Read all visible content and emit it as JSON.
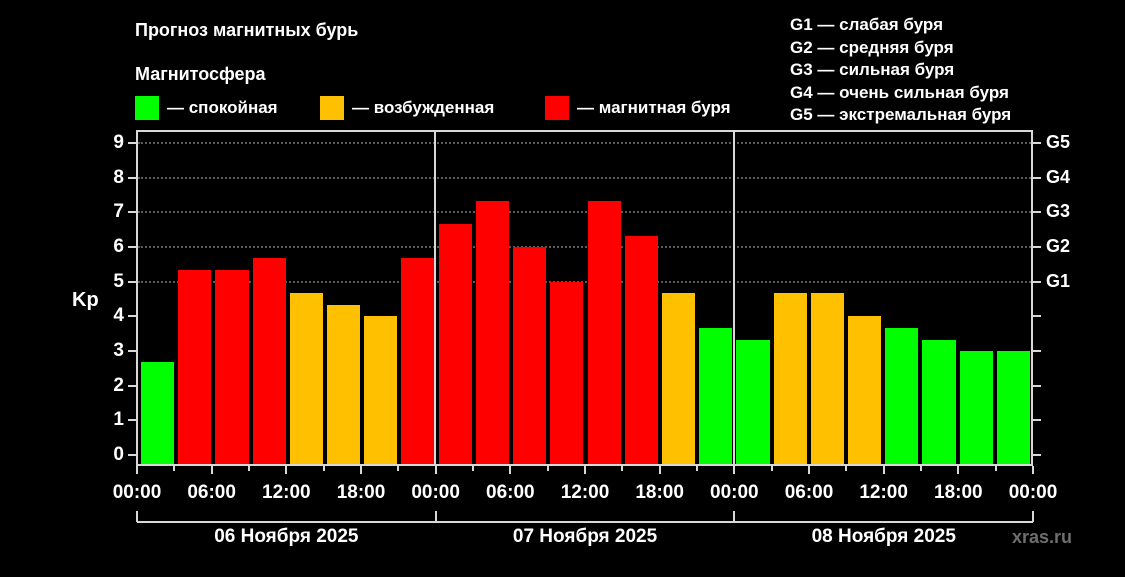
{
  "header": {
    "title": "Прогноз магнитных бурь",
    "subtitle": "Магнитосфера"
  },
  "legend": [
    {
      "label": "— спокойная",
      "color": "#00ff00"
    },
    {
      "label": "— возбужденная",
      "color": "#ffc000"
    },
    {
      "label": "— магнитная буря",
      "color": "#ff0000"
    }
  ],
  "g_legend": [
    "G1 — слабая буря",
    "G2 — средняя буря",
    "G3 — сильная буря",
    "G4 — очень сильная буря",
    "G5 — экстремальная буря"
  ],
  "watermark": "xras.ru",
  "chart_data": {
    "type": "bar",
    "title": "Прогноз магнитных бурь",
    "ylabel": "Kp",
    "xlabel": "",
    "ylim": [
      0,
      9
    ],
    "yticks": [
      "0",
      "1",
      "2",
      "3",
      "4",
      "5",
      "6",
      "7",
      "8",
      "9"
    ],
    "right_axis_labels": [
      {
        "kp": 5,
        "label": "G1"
      },
      {
        "kp": 6,
        "label": "G2"
      },
      {
        "kp": 7,
        "label": "G3"
      },
      {
        "kp": 8,
        "label": "G4"
      },
      {
        "kp": 9,
        "label": "G5"
      }
    ],
    "grid": true,
    "legend_position": "top",
    "xtick_labels": [
      "00:00",
      "06:00",
      "12:00",
      "18:00",
      "00:00",
      "06:00",
      "12:00",
      "18:00",
      "00:00",
      "06:00",
      "12:00",
      "18:00",
      "00:00"
    ],
    "days": [
      "06 Ноября 2025",
      "07 Ноября 2025",
      "08 Ноября 2025"
    ],
    "categories": [
      "06.11 00-03",
      "06.11 03-06",
      "06.11 06-09",
      "06.11 09-12",
      "06.11 12-15",
      "06.11 15-18",
      "06.11 18-21",
      "06.11 21-24",
      "07.11 00-03",
      "07.11 03-06",
      "07.11 06-09",
      "07.11 09-12",
      "07.11 12-15",
      "07.11 15-18",
      "07.11 18-21",
      "07.11 21-24",
      "08.11 00-03",
      "08.11 03-06",
      "08.11 06-09",
      "08.11 09-12",
      "08.11 12-15",
      "08.11 15-18",
      "08.11 18-21",
      "08.11 21-24"
    ],
    "values": [
      2.67,
      5.33,
      5.33,
      5.67,
      4.67,
      4.33,
      4.0,
      5.67,
      6.67,
      7.33,
      6.0,
      5.0,
      7.33,
      6.33,
      4.67,
      3.67,
      3.33,
      4.67,
      4.67,
      4.0,
      3.67,
      3.33,
      3.0,
      3.0
    ],
    "status": [
      "calm",
      "storm",
      "storm",
      "storm",
      "active",
      "active",
      "active",
      "storm",
      "storm",
      "storm",
      "storm",
      "storm",
      "storm",
      "storm",
      "active",
      "calm",
      "calm",
      "active",
      "active",
      "active",
      "calm",
      "calm",
      "calm",
      "calm"
    ],
    "status_colors": {
      "calm": "#00ff00",
      "active": "#ffc000",
      "storm": "#ff0000"
    }
  }
}
